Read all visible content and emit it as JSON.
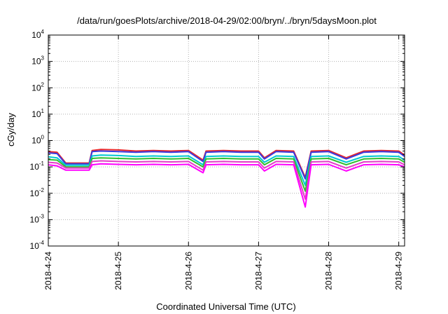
{
  "chart_data": {
    "type": "line",
    "title": "/data/run/goesPlots/archive/2018-04-29/02:00/bryn/../bryn/5daysMoon.plot",
    "xlabel": "Coordinated Universal Time (UTC)",
    "ylabel": "cGy/day",
    "yscale": "log",
    "ylim": [
      0.0001,
      10000
    ],
    "xlim": [
      "2018-04-24T00:00",
      "2018-04-29T02:00"
    ],
    "grid": true,
    "y_ticks": [
      {
        "base": "10",
        "exp": "-4",
        "value": 0.0001
      },
      {
        "base": "10",
        "exp": "-3",
        "value": 0.001
      },
      {
        "base": "10",
        "exp": "-2",
        "value": 0.01
      },
      {
        "base": "10",
        "exp": "-1",
        "value": 0.1
      },
      {
        "base": "10",
        "exp": "0",
        "value": 1
      },
      {
        "base": "10",
        "exp": "1",
        "value": 10
      },
      {
        "base": "10",
        "exp": "2",
        "value": 100
      },
      {
        "base": "10",
        "exp": "3",
        "value": 1000
      },
      {
        "base": "10",
        "exp": "4",
        "value": 10000
      }
    ],
    "x_ticks": [
      {
        "label": "2018-4-24",
        "value": "2018-04-24T00:00"
      },
      {
        "label": "2018-4-25",
        "value": "2018-04-25T00:00"
      },
      {
        "label": "2018-4-26",
        "value": "2018-04-26T00:00"
      },
      {
        "label": "2018-4-27",
        "value": "2018-04-27T00:00"
      },
      {
        "label": "2018-4-28",
        "value": "2018-04-28T00:00"
      },
      {
        "label": "2018-4-29",
        "value": "2018-04-29T00:00"
      }
    ],
    "series": [
      {
        "color": "#e8262b",
        "x": [
          "2018-04-24T00:00",
          "2018-04-24T03:00",
          "2018-04-24T06:00",
          "2018-04-24T14:00",
          "2018-04-24T15:00",
          "2018-04-24T18:00",
          "2018-04-25T00:00",
          "2018-04-25T06:00",
          "2018-04-25T12:00",
          "2018-04-25T18:00",
          "2018-04-26T00:00",
          "2018-04-26T05:00",
          "2018-04-26T06:00",
          "2018-04-26T12:00",
          "2018-04-26T18:00",
          "2018-04-27T00:00",
          "2018-04-27T02:00",
          "2018-04-27T06:00",
          "2018-04-27T12:00",
          "2018-04-27T16:00",
          "2018-04-27T18:00",
          "2018-04-28T00:00",
          "2018-04-28T06:00",
          "2018-04-28T12:00",
          "2018-04-28T18:00",
          "2018-04-29T00:00",
          "2018-04-29T02:00"
        ],
        "values": [
          0.38,
          0.36,
          0.14,
          0.14,
          0.42,
          0.46,
          0.44,
          0.4,
          0.42,
          0.4,
          0.42,
          0.18,
          0.4,
          0.42,
          0.4,
          0.4,
          0.22,
          0.42,
          0.4,
          0.04,
          0.4,
          0.42,
          0.22,
          0.4,
          0.42,
          0.4,
          0.28
        ]
      },
      {
        "color": "#3a3adf",
        "x": [
          "2018-04-24T00:00",
          "2018-04-24T03:00",
          "2018-04-24T06:00",
          "2018-04-24T14:00",
          "2018-04-24T15:00",
          "2018-04-24T18:00",
          "2018-04-25T00:00",
          "2018-04-25T06:00",
          "2018-04-25T12:00",
          "2018-04-25T18:00",
          "2018-04-26T00:00",
          "2018-04-26T05:00",
          "2018-04-26T06:00",
          "2018-04-26T12:00",
          "2018-04-26T18:00",
          "2018-04-27T00:00",
          "2018-04-27T02:00",
          "2018-04-27T06:00",
          "2018-04-27T12:00",
          "2018-04-27T16:00",
          "2018-04-27T18:00",
          "2018-04-28T00:00",
          "2018-04-28T06:00",
          "2018-04-28T12:00",
          "2018-04-28T18:00",
          "2018-04-29T00:00",
          "2018-04-29T02:00"
        ],
        "values": [
          0.34,
          0.32,
          0.13,
          0.13,
          0.38,
          0.4,
          0.38,
          0.36,
          0.38,
          0.36,
          0.38,
          0.16,
          0.36,
          0.38,
          0.36,
          0.36,
          0.2,
          0.38,
          0.36,
          0.035,
          0.36,
          0.38,
          0.2,
          0.36,
          0.38,
          0.36,
          0.25
        ]
      },
      {
        "color": "#00c8d2",
        "x": [
          "2018-04-24T00:00",
          "2018-04-24T03:00",
          "2018-04-24T06:00",
          "2018-04-24T14:00",
          "2018-04-24T15:00",
          "2018-04-24T18:00",
          "2018-04-25T00:00",
          "2018-04-25T06:00",
          "2018-04-25T12:00",
          "2018-04-25T18:00",
          "2018-04-26T00:00",
          "2018-04-26T05:00",
          "2018-04-26T06:00",
          "2018-04-26T12:00",
          "2018-04-26T18:00",
          "2018-04-27T00:00",
          "2018-04-27T02:00",
          "2018-04-27T06:00",
          "2018-04-27T12:00",
          "2018-04-27T16:00",
          "2018-04-27T18:00",
          "2018-04-28T00:00",
          "2018-04-28T06:00",
          "2018-04-28T12:00",
          "2018-04-28T18:00",
          "2018-04-29T00:00",
          "2018-04-29T02:00"
        ],
        "values": [
          0.24,
          0.22,
          0.115,
          0.115,
          0.26,
          0.28,
          0.27,
          0.25,
          0.26,
          0.25,
          0.26,
          0.12,
          0.25,
          0.26,
          0.25,
          0.25,
          0.15,
          0.26,
          0.25,
          0.02,
          0.25,
          0.26,
          0.15,
          0.25,
          0.26,
          0.25,
          0.18
        ]
      },
      {
        "color": "#2fbf2f",
        "x": [
          "2018-04-24T00:00",
          "2018-04-24T03:00",
          "2018-04-24T06:00",
          "2018-04-24T14:00",
          "2018-04-24T15:00",
          "2018-04-24T18:00",
          "2018-04-25T00:00",
          "2018-04-25T06:00",
          "2018-04-25T12:00",
          "2018-04-25T18:00",
          "2018-04-26T00:00",
          "2018-04-26T05:00",
          "2018-04-26T06:00",
          "2018-04-26T12:00",
          "2018-04-26T18:00",
          "2018-04-27T00:00",
          "2018-04-27T02:00",
          "2018-04-27T06:00",
          "2018-04-27T12:00",
          "2018-04-27T16:00",
          "2018-04-27T18:00",
          "2018-04-28T00:00",
          "2018-04-28T06:00",
          "2018-04-28T12:00",
          "2018-04-28T18:00",
          "2018-04-29T00:00",
          "2018-04-29T02:00"
        ],
        "values": [
          0.19,
          0.18,
          0.1,
          0.1,
          0.21,
          0.22,
          0.21,
          0.2,
          0.21,
          0.2,
          0.21,
          0.1,
          0.2,
          0.21,
          0.2,
          0.2,
          0.12,
          0.21,
          0.2,
          0.012,
          0.2,
          0.21,
          0.12,
          0.2,
          0.21,
          0.2,
          0.15
        ]
      },
      {
        "color": "#e43cc7",
        "x": [
          "2018-04-24T00:00",
          "2018-04-24T03:00",
          "2018-04-24T06:00",
          "2018-04-24T14:00",
          "2018-04-24T15:00",
          "2018-04-24T18:00",
          "2018-04-25T00:00",
          "2018-04-25T06:00",
          "2018-04-25T12:00",
          "2018-04-25T18:00",
          "2018-04-26T00:00",
          "2018-04-26T05:00",
          "2018-04-26T06:00",
          "2018-04-26T12:00",
          "2018-04-26T18:00",
          "2018-04-27T00:00",
          "2018-04-27T02:00",
          "2018-04-27T06:00",
          "2018-04-27T12:00",
          "2018-04-27T16:00",
          "2018-04-27T18:00",
          "2018-04-28T00:00",
          "2018-04-28T06:00",
          "2018-04-28T12:00",
          "2018-04-28T18:00",
          "2018-04-29T00:00",
          "2018-04-29T02:00"
        ],
        "values": [
          0.15,
          0.14,
          0.09,
          0.09,
          0.16,
          0.17,
          0.16,
          0.155,
          0.16,
          0.155,
          0.16,
          0.075,
          0.155,
          0.16,
          0.155,
          0.155,
          0.09,
          0.16,
          0.155,
          0.006,
          0.155,
          0.16,
          0.09,
          0.155,
          0.16,
          0.155,
          0.12
        ]
      },
      {
        "color": "#ff00ff",
        "x": [
          "2018-04-24T00:00",
          "2018-04-24T03:00",
          "2018-04-24T06:00",
          "2018-04-24T14:00",
          "2018-04-24T15:00",
          "2018-04-24T18:00",
          "2018-04-25T00:00",
          "2018-04-25T06:00",
          "2018-04-25T12:00",
          "2018-04-25T18:00",
          "2018-04-26T00:00",
          "2018-04-26T05:00",
          "2018-04-26T06:00",
          "2018-04-26T12:00",
          "2018-04-26T18:00",
          "2018-04-27T00:00",
          "2018-04-27T02:00",
          "2018-04-27T06:00",
          "2018-04-27T12:00",
          "2018-04-27T16:00",
          "2018-04-27T18:00",
          "2018-04-28T00:00",
          "2018-04-28T06:00",
          "2018-04-28T12:00",
          "2018-04-28T18:00",
          "2018-04-29T00:00",
          "2018-04-29T02:00"
        ],
        "values": [
          0.12,
          0.11,
          0.075,
          0.075,
          0.12,
          0.13,
          0.125,
          0.12,
          0.125,
          0.12,
          0.125,
          0.06,
          0.12,
          0.125,
          0.12,
          0.12,
          0.07,
          0.125,
          0.12,
          0.003,
          0.12,
          0.125,
          0.07,
          0.12,
          0.125,
          0.12,
          0.1
        ]
      }
    ]
  }
}
